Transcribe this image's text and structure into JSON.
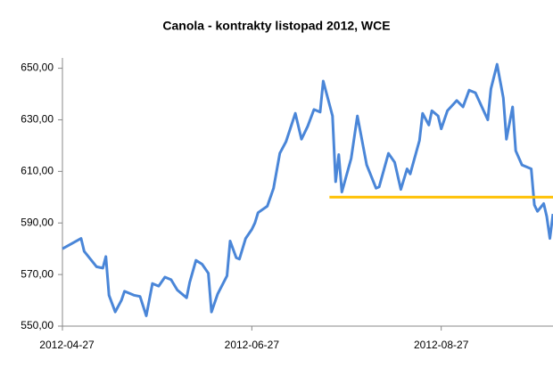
{
  "chart_data": {
    "type": "line",
    "title": "Canola - kontrakty listopad 2012, WCE",
    "x": [
      "2012-04-27",
      "2012-05-03",
      "2012-05-04",
      "2012-05-08",
      "2012-05-10",
      "2012-05-11",
      "2012-05-12",
      "2012-05-14",
      "2012-05-16",
      "2012-05-17",
      "2012-05-20",
      "2012-05-22",
      "2012-05-24",
      "2012-05-26",
      "2012-05-28",
      "2012-05-30",
      "2012-06-01",
      "2012-06-03",
      "2012-06-06",
      "2012-06-07",
      "2012-06-09",
      "2012-06-11",
      "2012-06-13",
      "2012-06-14",
      "2012-06-16",
      "2012-06-19",
      "2012-06-20",
      "2012-06-22",
      "2012-06-23",
      "2012-06-25",
      "2012-06-27",
      "2012-06-28",
      "2012-06-29",
      "2012-07-02",
      "2012-07-04",
      "2012-07-06",
      "2012-07-08",
      "2012-07-11",
      "2012-07-13",
      "2012-07-15",
      "2012-07-17",
      "2012-07-19",
      "2012-07-20",
      "2012-07-23",
      "2012-07-24",
      "2012-07-25",
      "2012-07-26",
      "2012-07-29",
      "2012-07-31",
      "2012-08-03",
      "2012-08-06",
      "2012-08-07",
      "2012-08-10",
      "2012-08-12",
      "2012-08-14",
      "2012-08-16",
      "2012-08-17",
      "2012-08-20",
      "2012-08-21",
      "2012-08-23",
      "2012-08-24",
      "2012-08-26",
      "2012-08-27",
      "2012-08-29",
      "2012-09-01",
      "2012-09-03",
      "2012-09-05",
      "2012-09-07",
      "2012-09-11",
      "2012-09-12",
      "2012-09-14",
      "2012-09-16",
      "2012-09-17",
      "2012-09-19",
      "2012-09-20",
      "2012-09-22",
      "2012-09-25",
      "2012-09-26",
      "2012-09-27",
      "2012-09-29",
      "2012-09-30",
      "2012-10-01",
      "2012-10-02"
    ],
    "series": [
      {
        "color": "#4a86d8",
        "values": [
          580,
          584,
          579,
          573,
          572.5,
          577,
          562,
          555.5,
          560,
          563.5,
          562,
          561.5,
          554,
          566.5,
          565.5,
          569,
          568,
          564,
          561,
          567,
          575.5,
          574,
          570.5,
          555.5,
          562.5,
          569.5,
          583,
          576.5,
          576,
          584,
          587.5,
          590,
          594,
          596.5,
          603.5,
          617,
          621.5,
          632.5,
          622.5,
          627.5,
          634,
          633,
          645,
          631.5,
          606,
          616.5,
          602,
          615,
          631.5,
          612.5,
          603.5,
          604,
          617,
          613.5,
          603,
          611,
          609,
          622,
          632.5,
          628,
          633.5,
          631.5,
          626.5,
          633.5,
          637.5,
          635,
          641.5,
          640.5,
          630,
          642,
          651.5,
          638.5,
          622.5,
          635,
          618,
          612.5,
          611,
          597,
          594.5,
          597.5,
          592.5,
          584,
          593.5
        ]
      }
    ],
    "reference_line": {
      "y": 600,
      "x": [
        "2012-07-22",
        "2012-10-02"
      ],
      "color": "#ffc000"
    },
    "xlim": [
      "2012-04-27",
      "2012-10-02"
    ],
    "xticks": [
      "2012-04-27",
      "2012-06-27",
      "2012-08-27"
    ],
    "ylim": [
      550,
      654
    ],
    "yticks": [
      {
        "value": 550,
        "label": "550,00"
      },
      {
        "value": 570,
        "label": "570,00"
      },
      {
        "value": 590,
        "label": "590,00"
      },
      {
        "value": 610,
        "label": "610,00"
      },
      {
        "value": 630,
        "label": "630,00"
      },
      {
        "value": 650,
        "label": "650,00"
      }
    ],
    "grid": false
  }
}
